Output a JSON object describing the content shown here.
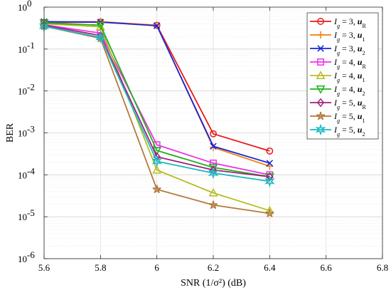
{
  "chart_data": {
    "type": "line",
    "yscale": "log",
    "xlabel": "SNR (1/σ²) (dB)",
    "ylabel": "BER",
    "xlim": [
      5.6,
      6.8
    ],
    "ylim": [
      1e-06,
      1
    ],
    "xticks": [
      "5.6",
      "5.8",
      "6",
      "6.2",
      "6.4",
      "6.6",
      "6.8"
    ],
    "xtick_values": [
      5.6,
      5.8,
      6.0,
      6.2,
      6.4,
      6.6,
      6.8
    ],
    "yticks": [
      {
        "value": 1,
        "exp": "0"
      },
      {
        "value": 0.1,
        "exp": "-1"
      },
      {
        "value": 0.01,
        "exp": "-2"
      },
      {
        "value": 0.001,
        "exp": "-3"
      },
      {
        "value": 0.0001,
        "exp": "-4"
      },
      {
        "value": 1e-05,
        "exp": "-5"
      },
      {
        "value": 1e-06,
        "exp": "-6"
      }
    ],
    "grid": true,
    "legend_position": "top-right",
    "x": [
      5.6,
      5.8,
      6.0,
      6.2,
      6.4
    ],
    "series": [
      {
        "g": "3",
        "u": "R",
        "color": "#e8191c",
        "marker": "circle",
        "values": [
          0.43,
          0.44,
          0.37,
          0.00095,
          0.00037
        ]
      },
      {
        "g": "3",
        "u": "1",
        "color": "#f07f12",
        "marker": "plus",
        "values": [
          0.44,
          0.45,
          0.37,
          0.00045,
          0.00016
        ]
      },
      {
        "g": "3",
        "u": "2",
        "color": "#1a22d6",
        "marker": "x",
        "values": [
          0.45,
          0.44,
          0.36,
          0.00048,
          0.00019
        ]
      },
      {
        "g": "4",
        "u": "R",
        "color": "#f032e6",
        "marker": "square",
        "values": [
          0.38,
          0.24,
          0.00052,
          0.00019,
          0.0001
        ]
      },
      {
        "g": "4",
        "u": "1",
        "color": "#b7bd22",
        "marker": "triangle-up",
        "values": [
          0.4,
          0.34,
          0.00013,
          3.7e-05,
          1.4e-05
        ]
      },
      {
        "g": "4",
        "u": "2",
        "color": "#21b21e",
        "marker": "triangle-down",
        "values": [
          0.42,
          0.37,
          0.00038,
          0.00015,
          9e-05
        ]
      },
      {
        "g": "5",
        "u": "R",
        "color": "#a3217d",
        "marker": "diamond",
        "values": [
          0.37,
          0.21,
          0.00027,
          0.00013,
          9e-05
        ]
      },
      {
        "g": "5",
        "u": "1",
        "color": "#b57a3c",
        "marker": "star",
        "values": [
          0.35,
          0.18,
          4.5e-05,
          1.9e-05,
          1.2e-05
        ]
      },
      {
        "g": "5",
        "u": "2",
        "color": "#19bac4",
        "marker": "hexagram",
        "values": [
          0.35,
          0.19,
          0.00021,
          0.00011,
          7e-05
        ]
      }
    ],
    "legend_prefix": "I",
    "legend_subscript": "g",
    "legend_mid": " = ",
    "legend_sep": ", ",
    "legend_vec": "u"
  }
}
